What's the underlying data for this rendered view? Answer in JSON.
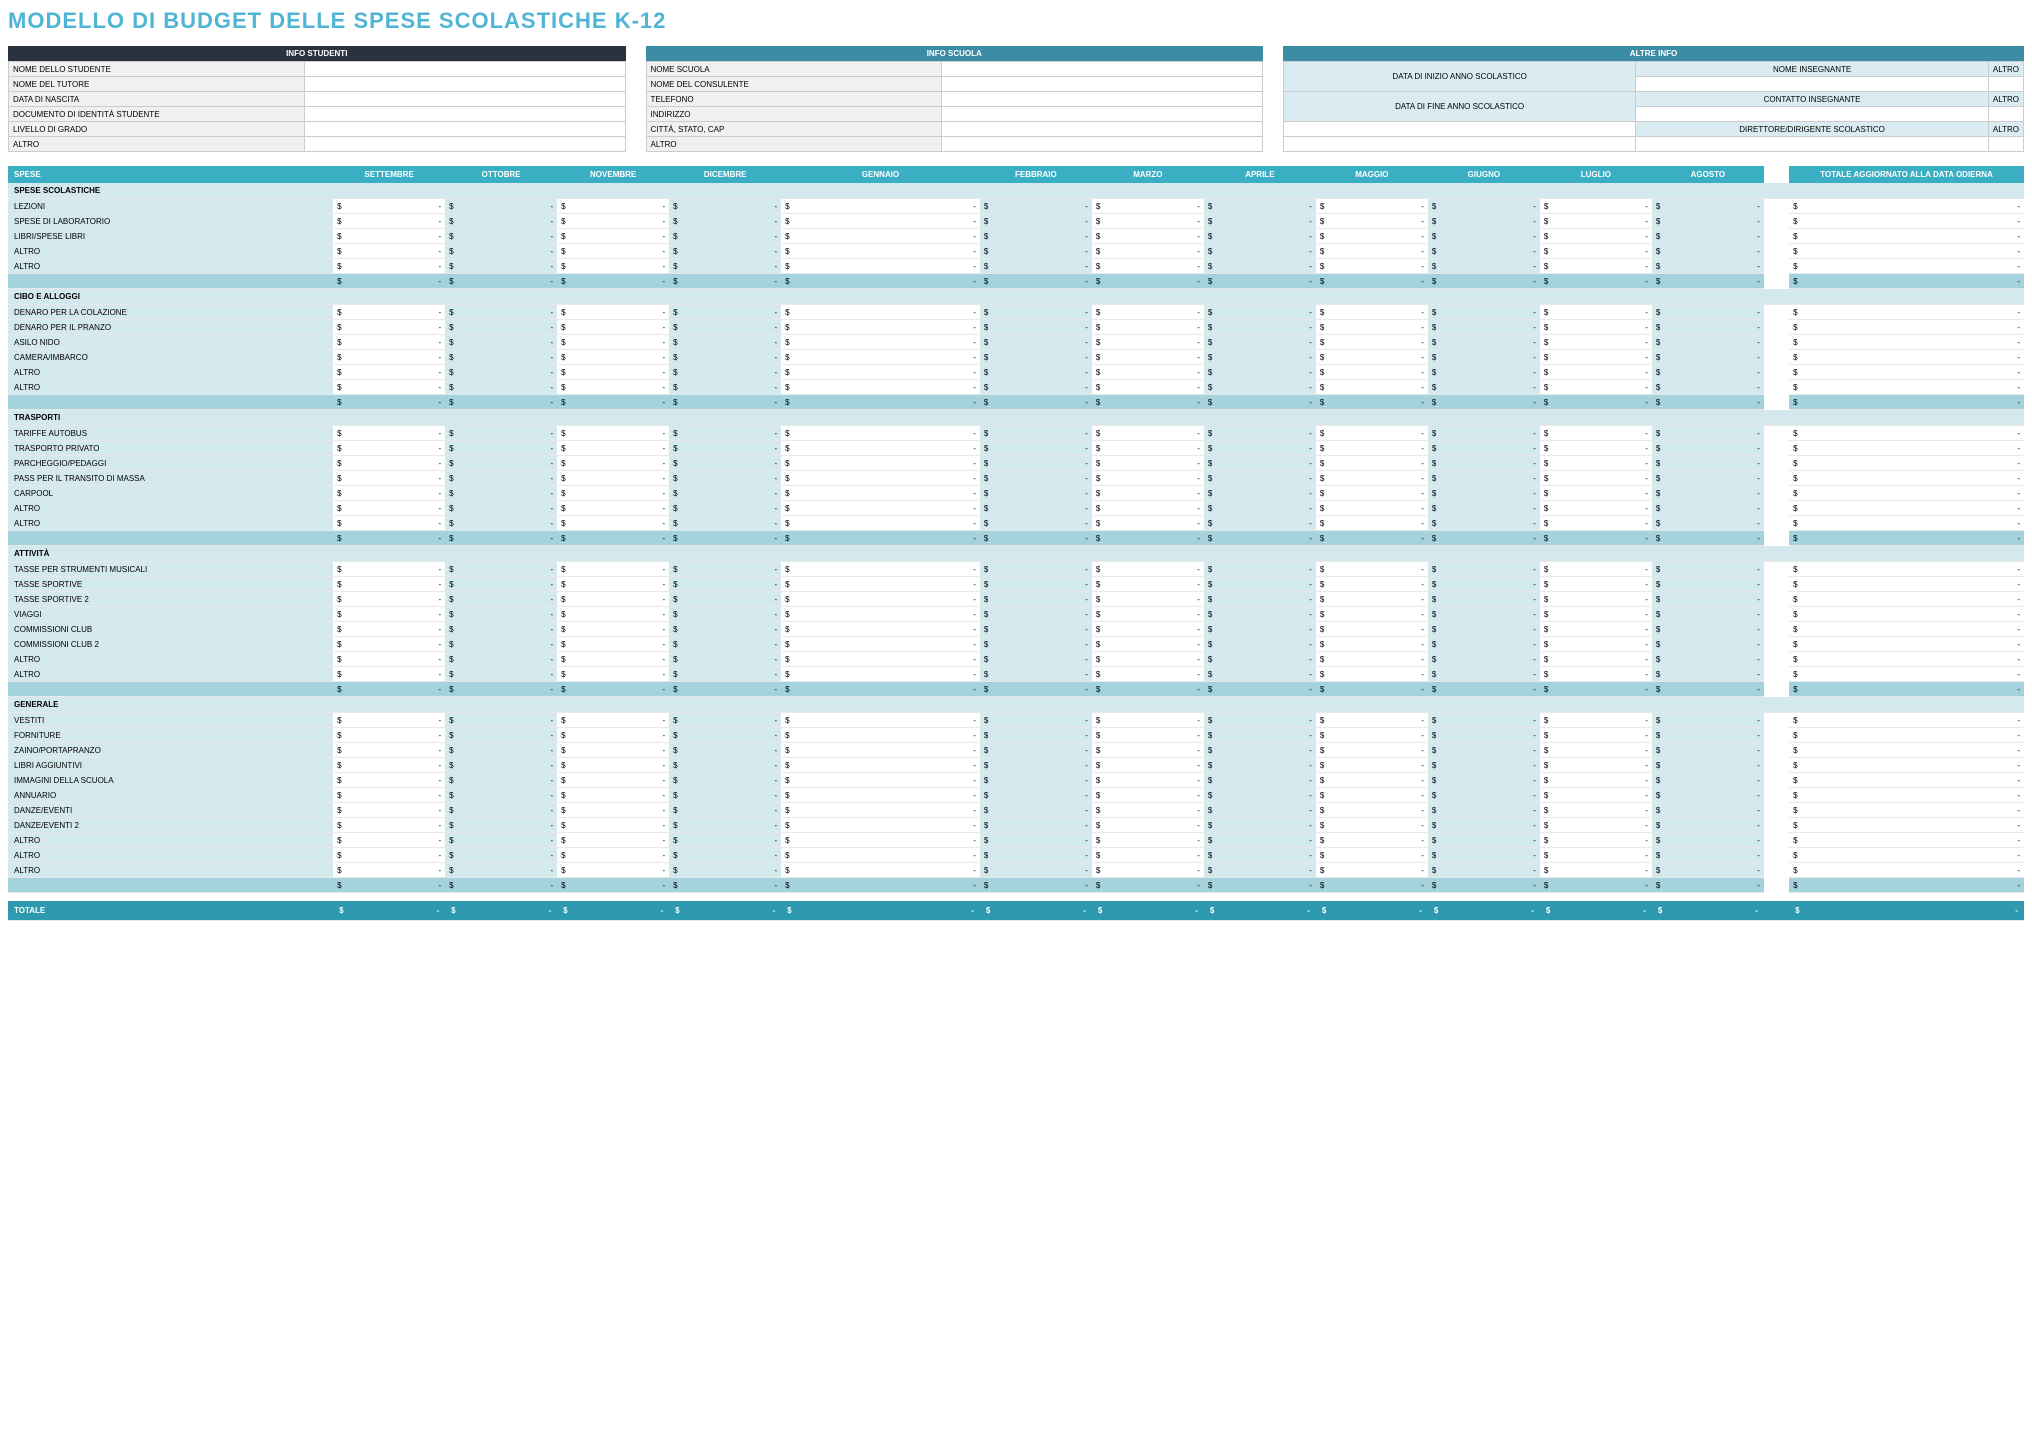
{
  "title": "MODELLO DI BUDGET DELLE SPESE SCOLASTICHE K-12",
  "info_student": {
    "header": "INFO STUDENTI",
    "fields": [
      "NOME DELLO STUDENTE",
      "NOME DEL TUTORE",
      "DATA DI NASCITA",
      "DOCUMENTO DI IDENTITÀ STUDENTE",
      "LIVELLO DI GRADO",
      "ALTRO"
    ]
  },
  "info_school": {
    "header": "INFO SCUOLA",
    "fields": [
      "NOME SCUOLA",
      "NOME DEL CONSULENTE",
      "TELEFONO",
      "INDIRIZZO",
      "CITTÀ, STATO, CAP",
      "ALTRO"
    ]
  },
  "info_other": {
    "header": "ALTRE INFO",
    "left": [
      "DATA DI INIZIO ANNO SCOLASTICO",
      "DATA DI FINE ANNO SCOLASTICO"
    ],
    "labels": [
      [
        "NOME INSEGNANTE",
        "ALTRO"
      ],
      [
        "CONTATTO INSEGNANTE",
        "ALTRO"
      ],
      [
        "DIRETTORE/DIRIGENTE SCOLASTICO",
        "ALTRO"
      ]
    ]
  },
  "budget": {
    "header_first": "SPESE",
    "months": [
      "SETTEMBRE",
      "OTTOBRE",
      "NOVEMBRE",
      "DICEMBRE",
      "GENNAIO",
      "FEBBRAIO",
      "MARZO",
      "APRILE",
      "MAGGIO",
      "GIUGNO",
      "LUGLIO",
      "AGOSTO"
    ],
    "total_header": "TOTALE AGGIORNATO ALLA DATA ODIERNA",
    "currency": "$",
    "dash": "-",
    "sections": [
      {
        "name": "SPESE SCOLASTICHE",
        "items": [
          "LEZIONI",
          "SPESE DI LABORATORIO",
          "LIBRI/SPESE LIBRI",
          "ALTRO",
          "ALTRO"
        ]
      },
      {
        "name": "CIBO E ALLOGGI",
        "items": [
          "DENARO PER LA COLAZIONE",
          "DENARO PER IL PRANZO",
          "ASILO NIDO",
          "CAMERA/IMBARCO",
          "ALTRO",
          "ALTRO"
        ]
      },
      {
        "name": "TRASPORTI",
        "items": [
          "TARIFFE AUTOBUS",
          "TRASPORTO PRIVATO",
          "PARCHEGGIO/PEDAGGI",
          "PASS PER IL TRANSITO DI MASSA",
          "CARPOOL",
          "ALTRO",
          "ALTRO"
        ]
      },
      {
        "name": "ATTIVITÀ",
        "items": [
          "TASSE PER STRUMENTI MUSICALI",
          "TASSE SPORTIVE",
          "TASSE SPORTIVE 2",
          "VIAGGI",
          "COMMISSIONI CLUB",
          "COMMISSIONI CLUB 2",
          "ALTRO",
          "ALTRO"
        ]
      },
      {
        "name": "GENERALE",
        "items": [
          "VESTITI",
          "FORNITURE",
          "ZAINO/PORTAPRANZO",
          "LIBRI AGGIUNTIVI",
          "IMMAGINI DELLA SCUOLA",
          "ANNUARIO",
          "DANZE/EVENTI",
          "DANZE/EVENTI 2",
          "ALTRO",
          "ALTRO",
          "ALTRO"
        ]
      }
    ],
    "grand_total": "TOTALE"
  },
  "colors": {
    "title": "#4fb5d4",
    "header_dark": "#2a3240",
    "header_teal": "#3d8ca5",
    "budget_header": "#3aaec2",
    "section_bg": "#d3e9ee",
    "subtotal_bg": "#a4d3dd",
    "grand_bg": "#2d9aaf"
  }
}
